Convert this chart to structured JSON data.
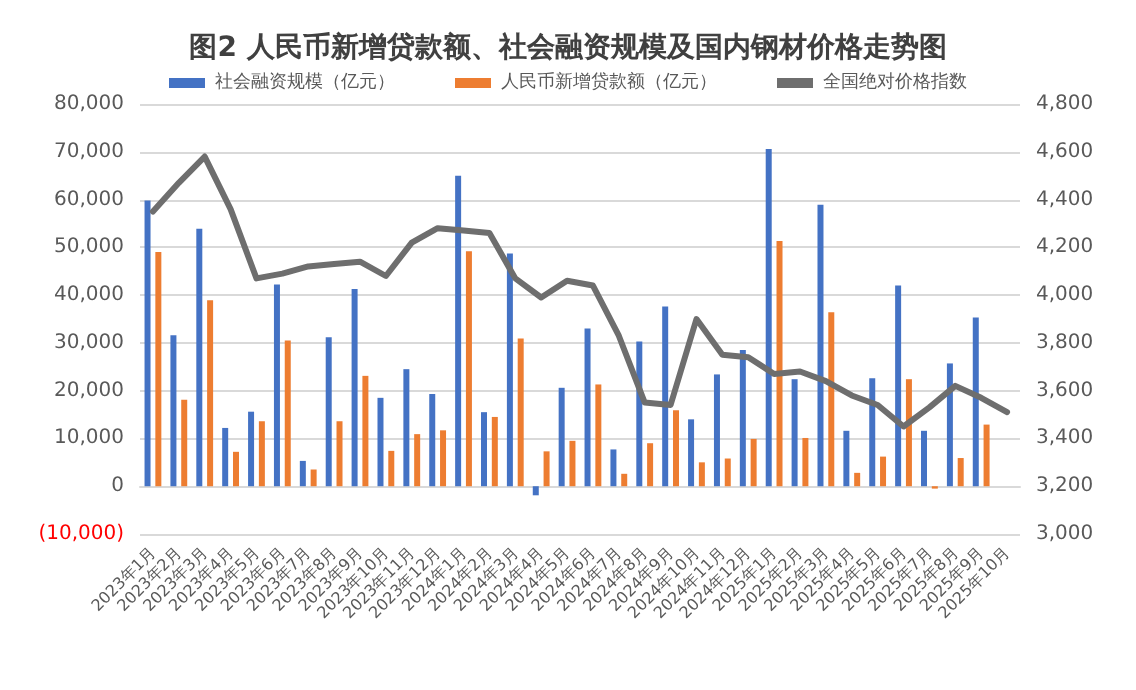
{
  "chart_data": {
    "type": "bar",
    "title": "图2 人民币新增贷款额、社会融资规模及国内钢材价格走势图",
    "categories": [
      "2023年1月",
      "2023年2月",
      "2023年3月",
      "2023年4月",
      "2023年5月",
      "2023年6月",
      "2023年7月",
      "2023年8月",
      "2023年9月",
      "2023年10月",
      "2023年11月",
      "2023年12月",
      "2024年1月",
      "2024年2月",
      "2024年3月",
      "2024年4月",
      "2024年5月",
      "2024年6月",
      "2024年7月",
      "2024年8月",
      "2024年9月",
      "2024年10月",
      "2024年11月",
      "2024年12月",
      "2025年1月",
      "2025年2月",
      "2025年3月",
      "2025年4月",
      "2025年5月",
      "2025年6月",
      "2025年7月",
      "2025年8月",
      "2025年9月",
      "2025年10月"
    ],
    "series": [
      {
        "name": "社会融资规模（亿元）",
        "color": "#4472c4",
        "values": [
          59800,
          31600,
          53900,
          12200,
          15600,
          42200,
          5300,
          31200,
          41300,
          18500,
          24500,
          19300,
          65000,
          15500,
          48700,
          -1900,
          20600,
          33000,
          7700,
          30300,
          37600,
          14000,
          23400,
          28500,
          70600,
          22400,
          58900,
          11600,
          22600,
          42000,
          11600,
          25700,
          35300,
          null
        ]
      },
      {
        "name": "人民币新增贷款额（亿元）",
        "color": "#ed7d31",
        "values": [
          49000,
          18100,
          38900,
          7200,
          13600,
          30500,
          3500,
          13600,
          23100,
          7400,
          10900,
          11700,
          49200,
          14500,
          30900,
          7300,
          9500,
          21300,
          2600,
          9000,
          15900,
          5000,
          5800,
          9900,
          51300,
          10100,
          36400,
          2800,
          6200,
          22400,
          -500,
          5900,
          12900,
          null
        ]
      },
      {
        "name": "全国绝对价格指数",
        "type": "line",
        "axis": "y2",
        "color": "#6e6e6e",
        "values": [
          4350,
          4470,
          4580,
          4360,
          4070,
          4090,
          4120,
          4130,
          4140,
          4080,
          4220,
          4280,
          4270,
          4260,
          4070,
          3990,
          4060,
          4040,
          3830,
          3550,
          3540,
          3900,
          3750,
          3740,
          3670,
          3680,
          3640,
          3580,
          3540,
          3450,
          3530,
          3620,
          3570,
          3510
        ]
      }
    ],
    "ylim": [
      -10000,
      80000
    ],
    "yticks": [
      {
        "value": -10000,
        "label": "(10,000)"
      },
      0,
      {
        "value": 10000,
        "label": "10,000"
      },
      {
        "value": 20000,
        "label": "20,000"
      },
      {
        "value": 30000,
        "label": "30,000"
      },
      {
        "value": 40000,
        "label": "40,000"
      },
      {
        "value": 50000,
        "label": "50,000"
      },
      {
        "value": 60000,
        "label": "60,000"
      },
      {
        "value": 70000,
        "label": "70,000"
      },
      {
        "value": 80000,
        "label": "80,000"
      }
    ],
    "y2lim": [
      3000,
      4800
    ],
    "y2ticks": [
      {
        "value": 3000,
        "label": "3,000"
      },
      {
        "value": 3200,
        "label": "3,200"
      },
      {
        "value": 3400,
        "label": "3,400"
      },
      {
        "value": 3600,
        "label": "3,600"
      },
      {
        "value": 3800,
        "label": "3,800"
      },
      {
        "value": 4000,
        "label": "4,000"
      },
      {
        "value": 4200,
        "label": "4,200"
      },
      {
        "value": 4400,
        "label": "4,400"
      },
      {
        "value": 4600,
        "label": "4,600"
      },
      {
        "value": 4800,
        "label": "4,800"
      }
    ],
    "grid": "y",
    "legend": "top",
    "marker": "none",
    "line_style": "solid"
  }
}
